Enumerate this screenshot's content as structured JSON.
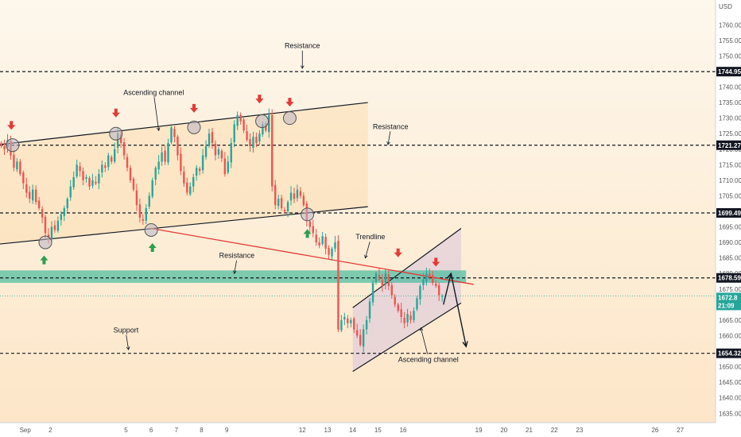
{
  "chart_data": {
    "type": "candlestick",
    "currency": "USD",
    "ylim": [
      1632,
      1768
    ],
    "xlim": [
      0,
      28.4
    ],
    "y_ticks": [
      1635,
      1640,
      1645,
      1650,
      1655,
      1660,
      1665,
      1670,
      1675,
      1680,
      1685,
      1690,
      1695,
      1700,
      1705,
      1710,
      1715,
      1720,
      1725,
      1730,
      1735,
      1740,
      1745,
      1750,
      1755,
      1760,
      1765
    ],
    "x_ticks": [
      {
        "x": 1,
        "label": "Sep"
      },
      {
        "x": 2,
        "label": "2"
      },
      {
        "x": 5,
        "label": "5"
      },
      {
        "x": 6,
        "label": "6"
      },
      {
        "x": 7,
        "label": "7"
      },
      {
        "x": 8,
        "label": "8"
      },
      {
        "x": 9,
        "label": "9"
      },
      {
        "x": 12,
        "label": "12"
      },
      {
        "x": 13,
        "label": "13"
      },
      {
        "x": 14,
        "label": "14"
      },
      {
        "x": 15,
        "label": "15"
      },
      {
        "x": 16,
        "label": "16"
      },
      {
        "x": 19,
        "label": "19"
      },
      {
        "x": 20,
        "label": "20"
      },
      {
        "x": 21,
        "label": "21"
      },
      {
        "x": 22,
        "label": "22"
      },
      {
        "x": 23,
        "label": "23"
      },
      {
        "x": 26,
        "label": "26"
      },
      {
        "x": 27,
        "label": "27"
      }
    ],
    "price_levels": [
      {
        "value": 1744.955,
        "label": "1744.955"
      },
      {
        "value": 1721.279,
        "label": "1721.279"
      },
      {
        "value": 1699.496,
        "label": "1699.496"
      },
      {
        "value": 1678.593,
        "label": "1678.593"
      },
      {
        "value": 1654.326,
        "label": "1654.326"
      }
    ],
    "current_price": {
      "value": 1672.8,
      "label": "1672.8",
      "countdown": "21:09"
    },
    "resistance_zone": {
      "from": 1677.0,
      "to": 1681.0,
      "x_end": 18.5
    },
    "channels": [
      {
        "name": "upper",
        "upper": [
          [
            0,
            1721.5
          ],
          [
            14.6,
            1735.0
          ]
        ],
        "lower": [
          [
            0,
            1689.5
          ],
          [
            14.6,
            1701.5
          ]
        ],
        "fill_y": [
          1733.5,
          1700.5
        ],
        "fill_x": [
          0,
          14.6
        ]
      },
      {
        "name": "lower",
        "upper": [
          [
            14.0,
            1669.0
          ],
          [
            18.3,
            1694.5
          ]
        ],
        "lower": [
          [
            14.0,
            1648.5
          ],
          [
            18.3,
            1670.5
          ]
        ]
      }
    ],
    "trendline": {
      "from": [
        6.0,
        1694.5
      ],
      "to": [
        18.8,
        1676.5
      ]
    },
    "projection": [
      [
        17.6,
        1670.0
      ],
      [
        17.9,
        1680.0
      ],
      [
        18.5,
        1656.5
      ]
    ],
    "annotations": [
      {
        "text": "Resistance",
        "x": 12.0,
        "y": 1752.5,
        "arrow_to": [
          12.0,
          1746.0
        ]
      },
      {
        "text": "Ascending channel",
        "x": 6.1,
        "y": 1737.5,
        "arrow_to": [
          6.3,
          1726.0
        ]
      },
      {
        "text": "Resistance",
        "x": 15.5,
        "y": 1726.5,
        "arrow_to": [
          15.4,
          1721.5
        ]
      },
      {
        "text": "Resistance",
        "x": 9.4,
        "y": 1685.0,
        "arrow_to": [
          9.3,
          1680.0
        ]
      },
      {
        "text": "Trendline",
        "x": 14.7,
        "y": 1691.0,
        "arrow_to": [
          14.5,
          1685.0
        ]
      },
      {
        "text": "Support",
        "x": 5.0,
        "y": 1661.0,
        "arrow_to": [
          5.1,
          1655.5
        ]
      },
      {
        "text": "Ascending channel",
        "x": 17.0,
        "y": 1651.5,
        "arrow_to": [
          16.7,
          1662.5
        ]
      }
    ],
    "circles": [
      [
        0.5,
        1721.3
      ],
      [
        1.8,
        1690.0
      ],
      [
        4.6,
        1725.0
      ],
      [
        6.0,
        1694.0
      ],
      [
        7.7,
        1727.0
      ],
      [
        10.4,
        1729.0
      ],
      [
        11.5,
        1730.0
      ],
      [
        12.2,
        1699.0
      ]
    ],
    "arrows_down": [
      [
        0.45,
        1727.5
      ],
      [
        4.6,
        1731.5
      ],
      [
        7.7,
        1733.0
      ],
      [
        10.3,
        1736.0
      ],
      [
        11.5,
        1735.0
      ],
      [
        15.8,
        1686.5
      ],
      [
        17.3,
        1683.5
      ]
    ],
    "arrows_up": [
      [
        1.75,
        1684.5
      ],
      [
        6.05,
        1688.5
      ],
      [
        12.2,
        1693.0
      ]
    ],
    "candles_close": [
      1721,
      1720,
      1723,
      1718,
      1714,
      1716,
      1712,
      1709,
      1706,
      1704,
      1707,
      1703,
      1701,
      1698,
      1693,
      1691,
      1695,
      1694,
      1697,
      1699,
      1701,
      1704,
      1708,
      1711,
      1715,
      1713,
      1710,
      1711,
      1708,
      1710,
      1709,
      1712,
      1715,
      1714,
      1718,
      1716,
      1720,
      1725,
      1722,
      1718,
      1714,
      1710,
      1707,
      1702,
      1698,
      1697,
      1701,
      1705,
      1710,
      1714,
      1716,
      1719,
      1716,
      1722,
      1727,
      1724,
      1718,
      1713,
      1709,
      1706,
      1708,
      1711,
      1714,
      1713,
      1718,
      1721,
      1725,
      1722,
      1718,
      1720,
      1717,
      1712,
      1716,
      1722,
      1728,
      1731,
      1729,
      1726,
      1723,
      1721,
      1724,
      1722,
      1725,
      1728,
      1726,
      1731,
      1708,
      1702,
      1704,
      1701,
      1700,
      1703,
      1706,
      1704,
      1707,
      1705,
      1702,
      1697,
      1695,
      1693,
      1690,
      1689,
      1692,
      1688,
      1686,
      1688,
      1690,
      1662,
      1665,
      1666,
      1664,
      1665,
      1662,
      1660,
      1657,
      1662,
      1665,
      1671,
      1677,
      1680,
      1678,
      1676,
      1680,
      1676,
      1673,
      1670,
      1668,
      1666,
      1664,
      1667,
      1665,
      1668,
      1672,
      1676,
      1678,
      1680,
      1679,
      1677,
      1676,
      1673,
      1672.8
    ]
  }
}
